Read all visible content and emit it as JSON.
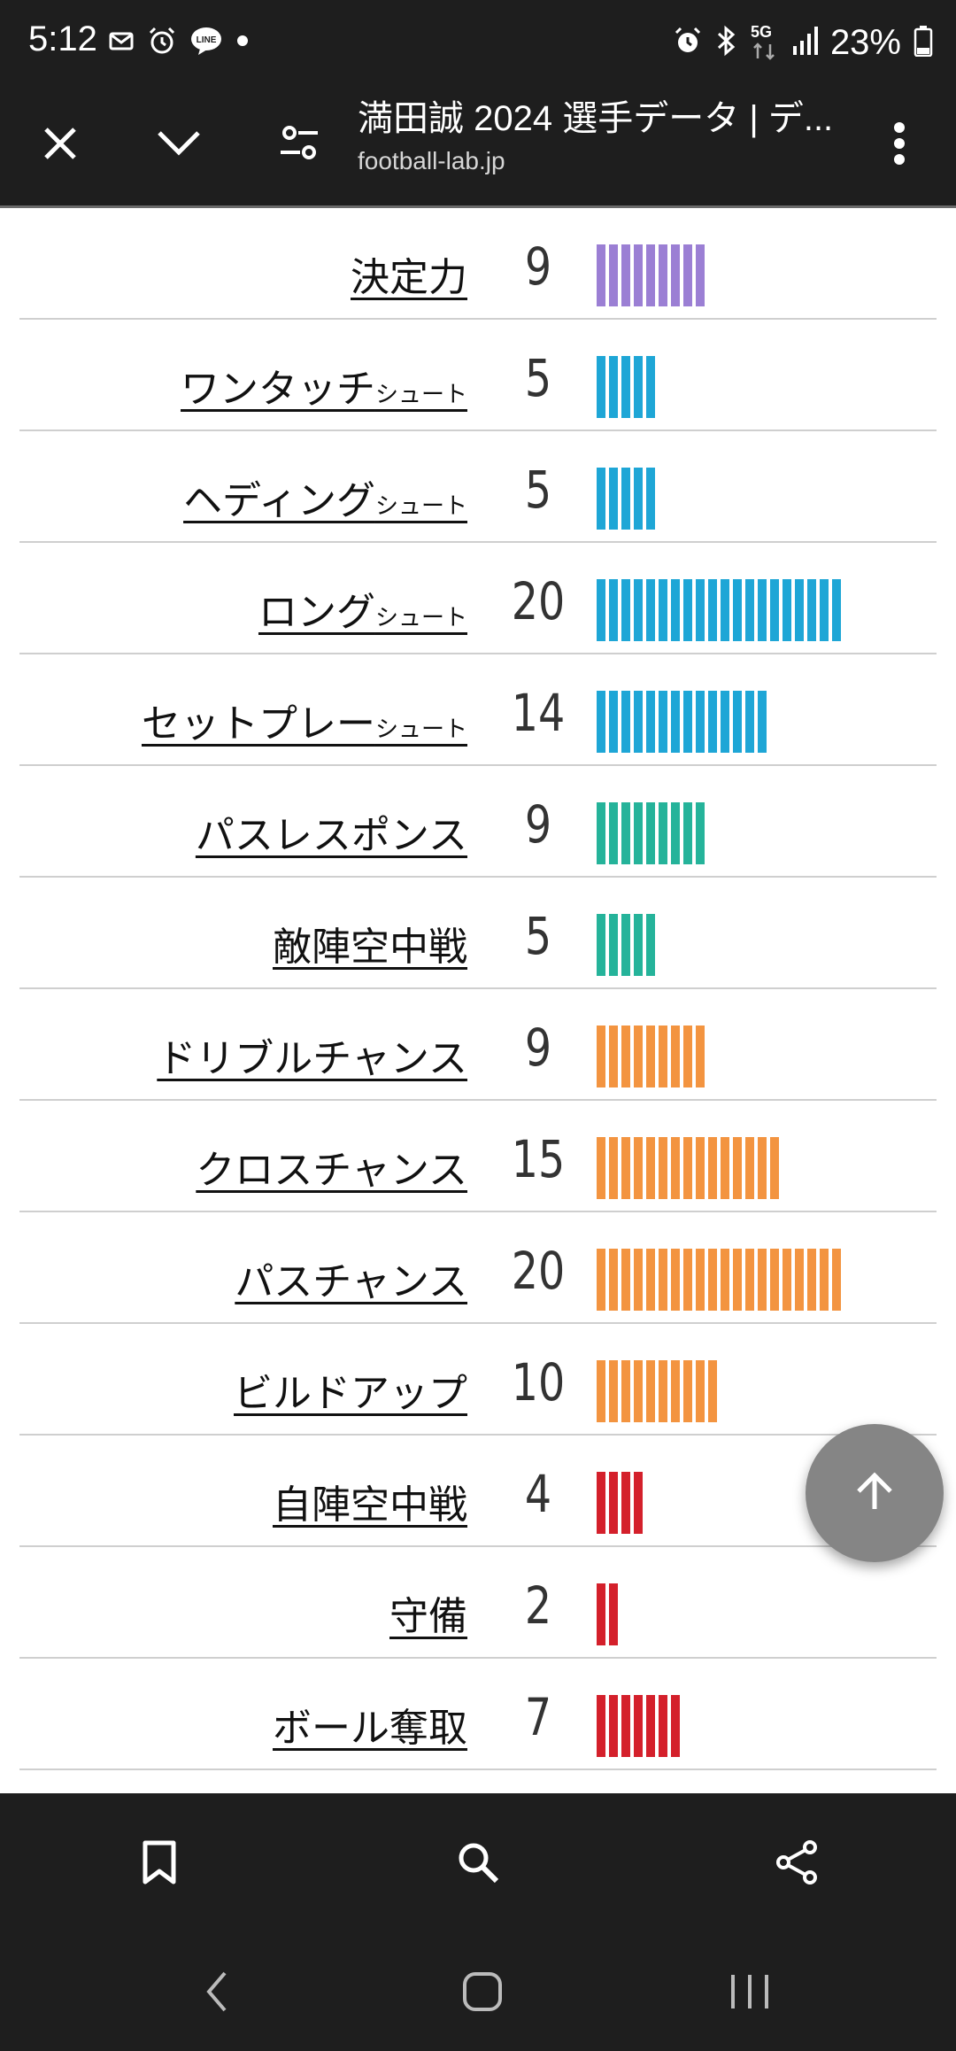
{
  "status_bar": {
    "time": "5:12",
    "battery": "23%",
    "network_label": "5G",
    "left_icons": [
      "mail-icon",
      "alarm-icon",
      "line-app-icon",
      "dot-icon"
    ],
    "right_icons": [
      "alarm-icon",
      "bluetooth-icon",
      "5g-icon",
      "signal-icon",
      "battery-icon"
    ]
  },
  "toolbar": {
    "title": "満田誠 2024 選手データ | デ...",
    "url": "football-lab.jp",
    "icons": [
      "close-icon",
      "chevron-down-icon",
      "tune-icon",
      "more-vert-icon"
    ]
  },
  "rows": [
    {
      "label": "決定力",
      "suffix": "",
      "value": "9",
      "level": 9,
      "color": "#9b7fd4"
    },
    {
      "label": "ワンタッチ",
      "suffix": "シュート",
      "value": "5",
      "level": 5,
      "color": "#1ea6d6"
    },
    {
      "label": "ヘディング",
      "suffix": "シュート",
      "value": "5",
      "level": 5,
      "color": "#1ea6d6"
    },
    {
      "label": "ロング",
      "suffix": "シュート",
      "value": "20",
      "level": 20,
      "color": "#1ea6d6"
    },
    {
      "label": "セットプレー",
      "suffix": "シュート",
      "value": "14",
      "level": 14,
      "color": "#1ea6d6"
    },
    {
      "label": "パスレスポンス",
      "suffix": "",
      "value": "9",
      "level": 9,
      "color": "#25b39a"
    },
    {
      "label": "敵陣空中戦",
      "suffix": "",
      "value": "5",
      "level": 5,
      "color": "#25b39a"
    },
    {
      "label": "ドリブルチャンス",
      "suffix": "",
      "value": "9",
      "level": 9,
      "color": "#f39440"
    },
    {
      "label": "クロスチャンス",
      "suffix": "",
      "value": "15",
      "level": 15,
      "color": "#f39440"
    },
    {
      "label": "パスチャンス",
      "suffix": "",
      "value": "20",
      "level": 20,
      "color": "#f39440"
    },
    {
      "label": "ビルドアップ",
      "suffix": "",
      "value": "10",
      "level": 10,
      "color": "#f39440"
    },
    {
      "label": "自陣空中戦",
      "suffix": "",
      "value": "4",
      "level": 4,
      "color": "#d4202b"
    },
    {
      "label": "守備",
      "suffix": "",
      "value": "2",
      "level": 2,
      "color": "#d4202b"
    },
    {
      "label": "ボール奪取",
      "suffix": "",
      "value": "7",
      "level": 7,
      "color": "#d4202b"
    }
  ],
  "scroll_top_icon": "arrow-up-icon",
  "bottom_bar": {
    "icons": [
      "bookmark-icon",
      "search-icon",
      "share-icon"
    ]
  },
  "nav_bar": {
    "icons": [
      "back-icon",
      "home-icon",
      "recents-icon"
    ]
  }
}
